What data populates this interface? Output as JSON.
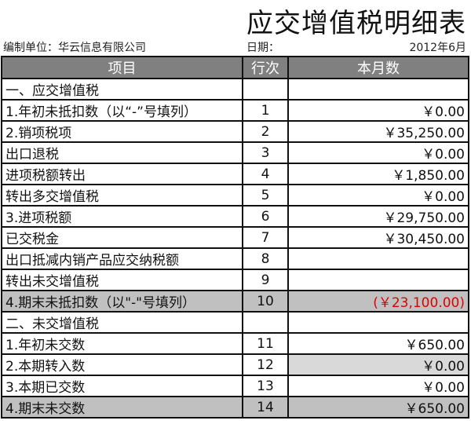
{
  "title": "应交增值税明细表",
  "info": {
    "unit": "编制单位：华云信息有限公司",
    "date_label": "日期：",
    "date": "2012年6月"
  },
  "headers": [
    "项目",
    "行次",
    "本月数"
  ],
  "rows": [
    {
      "item": "一、应交增值税",
      "line": "",
      "value": ""
    },
    {
      "item": "1.年初未抵扣数（以“-”号填列）",
      "line": "1",
      "value": "￥0.00"
    },
    {
      "item": "2.销项税项",
      "line": "2",
      "value": "￥35,250.00"
    },
    {
      "item": "出口退税",
      "line": "3",
      "value": "￥0.00"
    },
    {
      "item": "进项税额转出",
      "line": "4",
      "value": "￥1,850.00"
    },
    {
      "item": "转出多交增值税",
      "line": "5",
      "value": "￥0.00"
    },
    {
      "item": "3.进项税额",
      "line": "6",
      "value": "￥29,750.00"
    },
    {
      "item": "已交税金",
      "line": "7",
      "value": "￥30,450.00"
    },
    {
      "item": "出口抵减内销产品应交纳税额",
      "line": "8",
      "value": ""
    },
    {
      "item": "转出未交增值税",
      "line": "9",
      "value": ""
    },
    {
      "item": "4.期末未抵扣数（以\"-\"号填列）",
      "line": "10",
      "value": "(￥23,100.00)"
    },
    {
      "item": "二、未交增值税",
      "line": "",
      "value": ""
    },
    {
      "item": "1.年初未交数",
      "line": "11",
      "value": "￥650.00"
    },
    {
      "item": "2.本期转入数",
      "line": "12",
      "value": "￥0.00"
    },
    {
      "item": "3.本期已交数",
      "line": "13",
      "value": "￥0.00"
    },
    {
      "item": "4.期末未交数",
      "line": "14",
      "value": "￥650.00"
    }
  ],
  "colors": {
    "header": "#808080",
    "highlight_row": "#c0c0c0",
    "light_cell": "#d9d9d9",
    "negative": "#e00000"
  }
}
